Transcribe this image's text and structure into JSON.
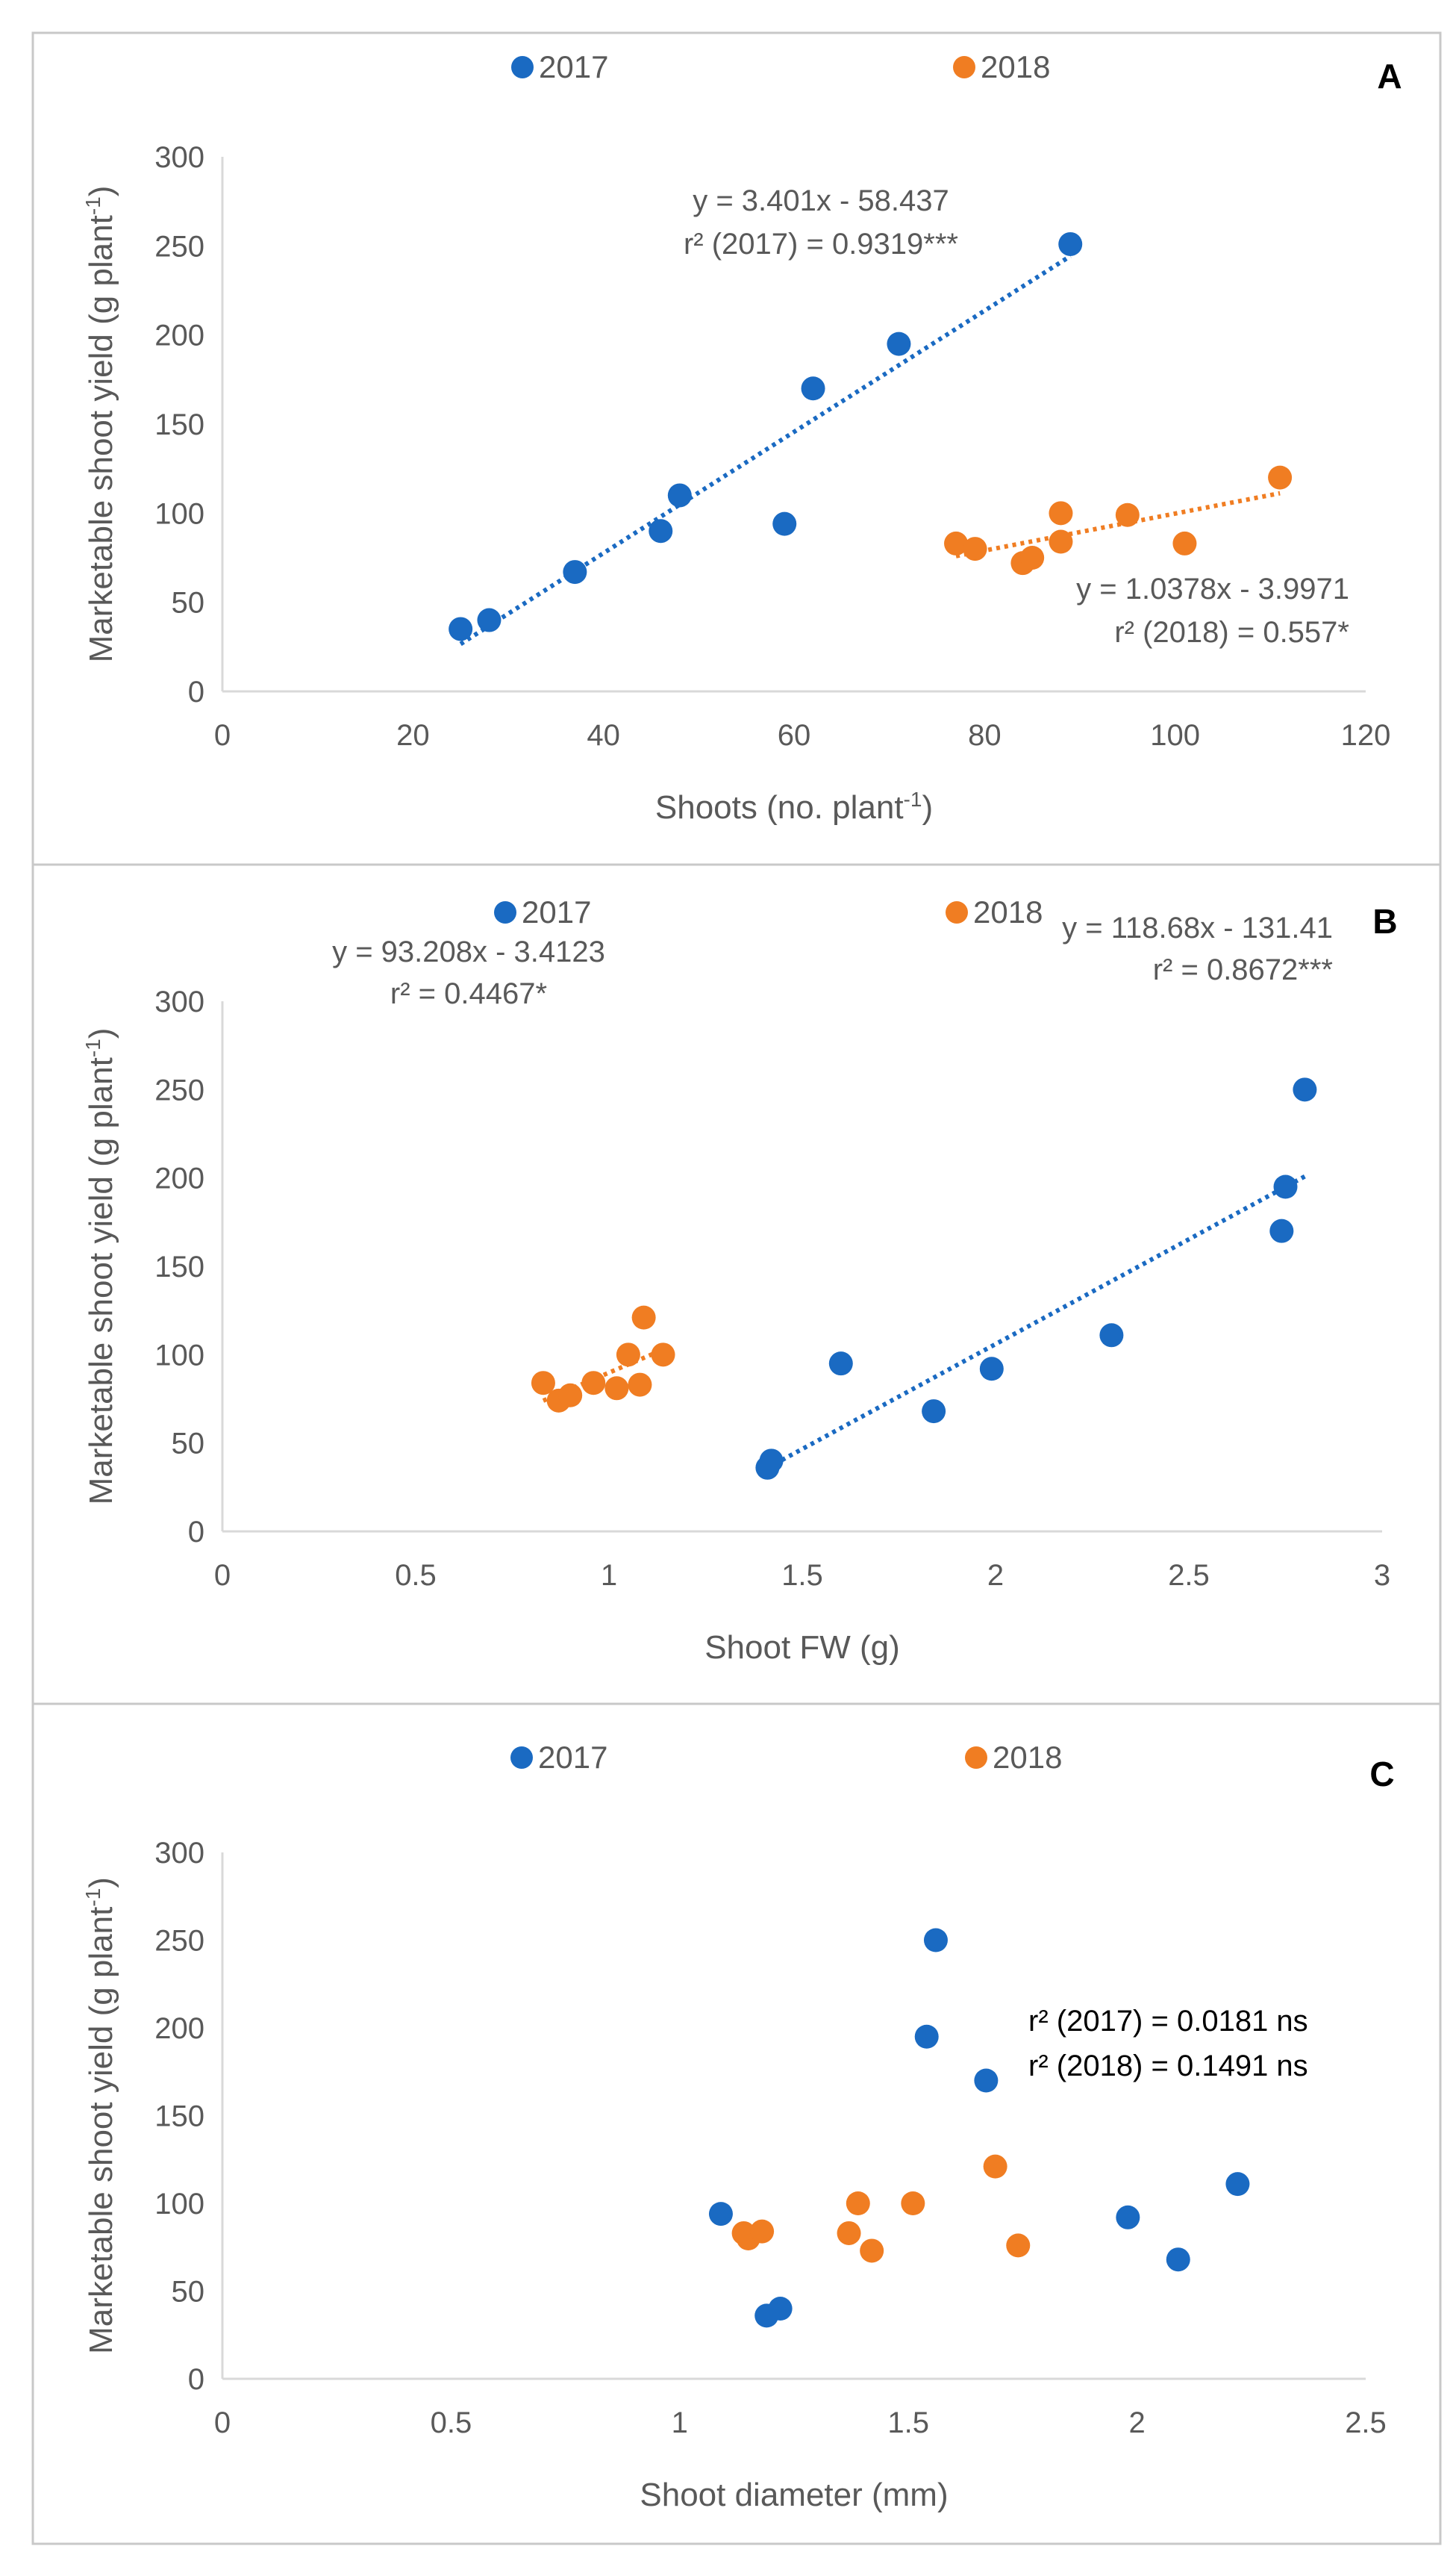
{
  "colors": {
    "s2017": "#1a6ac2",
    "s2018": "#f07d22",
    "text": "#595959",
    "axis": "#d9d9d9",
    "border": "#c8c8c8"
  },
  "chart_data": [
    {
      "type": "scatter",
      "panel_label": "A",
      "xlabel": {
        "main": "Shoots (no. plant",
        "sup": "-1",
        "end": ")"
      },
      "ylabel": {
        "main": "Marketable shoot yield (g plant",
        "sup": "-1",
        "end": ")"
      },
      "xlim": [
        0,
        120
      ],
      "ylim": [
        0,
        300
      ],
      "xticks": [
        "0",
        "20",
        "40",
        "60",
        "80",
        "100",
        "120"
      ],
      "yticks": [
        "0",
        "50",
        "100",
        "150",
        "200",
        "250",
        "300"
      ],
      "legend": [
        "2017",
        "2018"
      ],
      "series": [
        {
          "name": "2017",
          "points": [
            [
              25,
              35
            ],
            [
              28,
              40
            ],
            [
              37,
              67
            ],
            [
              46,
              90
            ],
            [
              48,
              110
            ],
            [
              59,
              94
            ],
            [
              62,
              170
            ],
            [
              71,
              195
            ],
            [
              89,
              251
            ]
          ],
          "trend": {
            "slope": 3.401,
            "intercept": -58.437,
            "x": [
              25,
              89
            ]
          }
        },
        {
          "name": "2018",
          "points": [
            [
              77,
              83
            ],
            [
              79,
              80
            ],
            [
              84,
              72
            ],
            [
              85,
              75
            ],
            [
              88,
              100
            ],
            [
              88,
              84
            ],
            [
              95,
              99
            ],
            [
              101,
              83
            ],
            [
              111,
              120
            ]
          ],
          "trend": {
            "slope": 1.0378,
            "intercept": -3.9971,
            "x": [
              77,
              111
            ]
          }
        }
      ],
      "annotations": [
        "y = 3.401x - 58.437",
        "r² (2017) = 0.9319***",
        "y = 1.0378x - 3.9971",
        "r² (2018) = 0.557*"
      ]
    },
    {
      "type": "scatter",
      "panel_label": "B",
      "xlabel": {
        "main": "Shoot FW (g)",
        "sup": "",
        "end": ""
      },
      "ylabel": {
        "main": "Marketable shoot yield (g plant",
        "sup": "-1",
        "end": ")"
      },
      "xlim": [
        0,
        3
      ],
      "ylim": [
        0,
        300
      ],
      "xticks": [
        "0",
        "0.5",
        "1",
        "1.5",
        "2",
        "2.5",
        "3"
      ],
      "yticks": [
        "0",
        "50",
        "100",
        "150",
        "200",
        "250",
        "300"
      ],
      "legend": [
        "2017",
        "2018"
      ],
      "series": [
        {
          "name": "2017",
          "points": [
            [
              1.41,
              36
            ],
            [
              1.42,
              40
            ],
            [
              1.6,
              95
            ],
            [
              1.84,
              68
            ],
            [
              1.99,
              92
            ],
            [
              2.3,
              111
            ],
            [
              2.74,
              170
            ],
            [
              2.75,
              195
            ],
            [
              2.8,
              250
            ]
          ],
          "trend": {
            "slope": 118.68,
            "intercept": -131.41,
            "x": [
              1.41,
              2.8
            ]
          }
        },
        {
          "name": "2018",
          "points": [
            [
              0.83,
              84
            ],
            [
              0.87,
              74
            ],
            [
              0.9,
              77
            ],
            [
              0.96,
              84
            ],
            [
              1.02,
              81
            ],
            [
              1.05,
              100
            ],
            [
              1.08,
              83
            ],
            [
              1.09,
              121
            ],
            [
              1.14,
              100
            ]
          ],
          "trend": {
            "slope": 93.208,
            "intercept": -3.4123,
            "x": [
              0.83,
              1.14
            ]
          }
        }
      ],
      "annotations": [
        "y = 118.68x - 131.41",
        "r² = 0.8672***",
        "y = 93.208x - 3.4123",
        "r² = 0.4467*"
      ]
    },
    {
      "type": "scatter",
      "panel_label": "C",
      "xlabel": {
        "main": "Shoot diameter (mm)",
        "sup": "",
        "end": ""
      },
      "ylabel": {
        "main": "Marketable shoot yield (g plant",
        "sup": "-1",
        "end": ")"
      },
      "xlim": [
        0,
        2.5
      ],
      "ylim": [
        0,
        300
      ],
      "xticks": [
        "0",
        "0.5",
        "1",
        "1.5",
        "2",
        "2.5"
      ],
      "yticks": [
        "0",
        "50",
        "100",
        "150",
        "200",
        "250",
        "300"
      ],
      "legend": [
        "2017",
        "2018"
      ],
      "series": [
        {
          "name": "2017",
          "points": [
            [
              1.09,
              94
            ],
            [
              1.19,
              36
            ],
            [
              1.22,
              40
            ],
            [
              1.54,
              195
            ],
            [
              1.56,
              250
            ],
            [
              1.67,
              170
            ],
            [
              1.98,
              92
            ],
            [
              2.09,
              68
            ],
            [
              2.22,
              111
            ]
          ]
        },
        {
          "name": "2018",
          "points": [
            [
              1.14,
              83
            ],
            [
              1.15,
              80
            ],
            [
              1.18,
              84
            ],
            [
              1.37,
              83
            ],
            [
              1.39,
              100
            ],
            [
              1.42,
              73
            ],
            [
              1.51,
              100
            ],
            [
              1.69,
              121
            ],
            [
              1.74,
              76
            ]
          ]
        }
      ],
      "annotations": [
        "r² (2017) = 0.0181 ns",
        "r² (2018) = 0.1491 ns"
      ]
    }
  ]
}
